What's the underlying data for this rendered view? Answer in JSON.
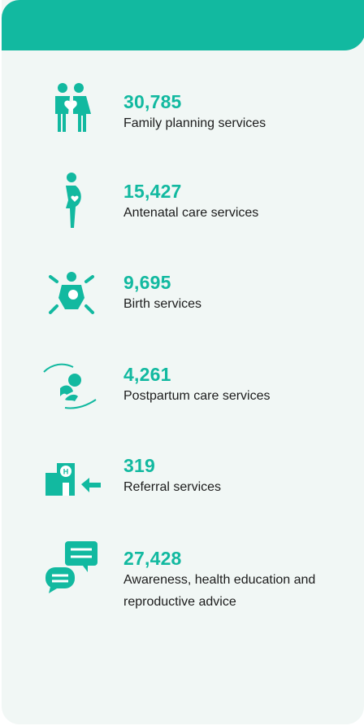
{
  "items": [
    {
      "value": "30,785",
      "label": "Family planning services"
    },
    {
      "value": "15,427",
      "label": "Antenatal care services"
    },
    {
      "value": "9,695",
      "label": "Birth services"
    },
    {
      "value": "4,261",
      "label": "Postpartum care services"
    },
    {
      "value": "319",
      "label": "Referral services"
    },
    {
      "value": "27,428",
      "label": "Awareness, health education and reproductive advice"
    }
  ]
}
